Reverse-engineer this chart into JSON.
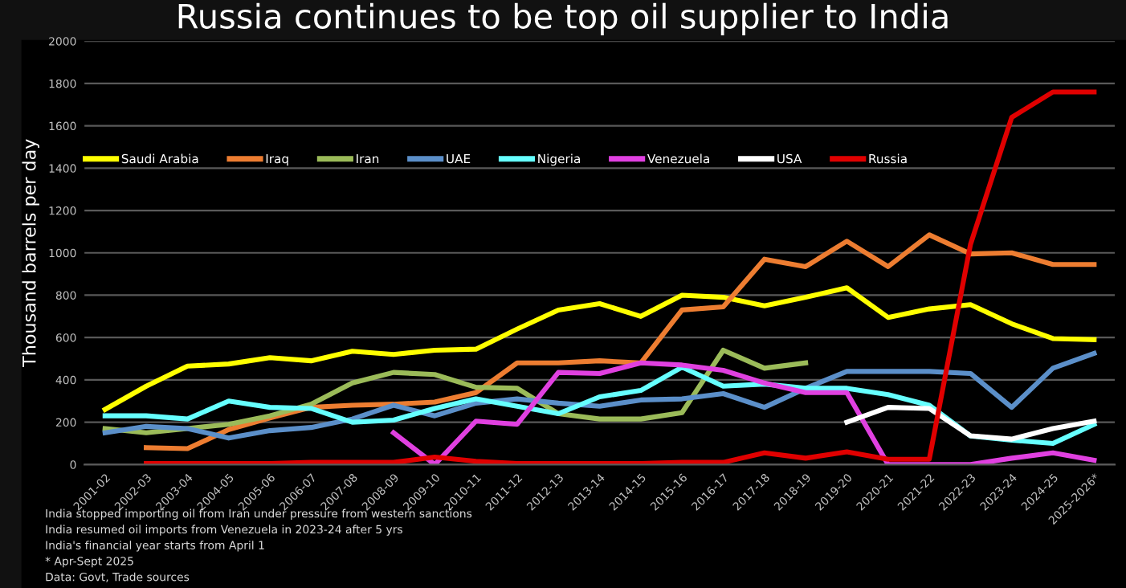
{
  "chart_data": {
    "type": "line",
    "title": "Russia continues to be top oil supplier to India",
    "ylabel": "Thousand barrels per day",
    "categories": [
      "2001-02",
      "2002-03",
      "2003-04",
      "2004-05",
      "2005-06",
      "2006-07",
      "2007-08",
      "2008-09",
      "2009-10",
      "2010-11",
      "2011-12",
      "2012-13",
      "2013-14",
      "2014-15",
      "2015-16",
      "2016-17",
      "2017-18",
      "2018-19",
      "2019-20",
      "2020-21",
      "2021-22",
      "2022-23",
      "2023-24",
      "2024-25",
      "2025-2026*"
    ],
    "series": [
      {
        "name": "Saudi Arabia",
        "color": "#ffff00",
        "values": [
          260,
          370,
          465,
          475,
          505,
          490,
          535,
          520,
          540,
          545,
          640,
          730,
          760,
          700,
          800,
          790,
          750,
          790,
          835,
          695,
          735,
          755,
          665,
          595,
          590
        ]
      },
      {
        "name": "Iraq",
        "color": "#ed7d31",
        "values": [
          null,
          80,
          75,
          165,
          220,
          270,
          280,
          285,
          295,
          340,
          480,
          480,
          490,
          480,
          730,
          745,
          970,
          935,
          1055,
          935,
          1085,
          995,
          1000,
          945,
          945
        ]
      },
      {
        "name": "Iran",
        "color": "#9bbb59",
        "values": [
          170,
          150,
          170,
          190,
          230,
          285,
          385,
          435,
          425,
          365,
          360,
          240,
          215,
          215,
          245,
          540,
          455,
          480,
          null,
          null,
          null,
          null,
          null,
          null,
          null
        ]
      },
      {
        "name": "UAE",
        "color": "#5b8fc9",
        "values": [
          150,
          180,
          170,
          125,
          160,
          175,
          215,
          280,
          230,
          290,
          310,
          290,
          275,
          305,
          310,
          335,
          270,
          360,
          440,
          440,
          440,
          430,
          270,
          455,
          525
        ]
      },
      {
        "name": "Nigeria",
        "color": "#66ffff",
        "values": [
          230,
          230,
          215,
          300,
          270,
          265,
          200,
          210,
          265,
          310,
          275,
          240,
          320,
          350,
          460,
          370,
          380,
          360,
          360,
          330,
          280,
          135,
          115,
          100,
          190
        ]
      },
      {
        "name": "Venezuela",
        "color": "#e040e0",
        "values": [
          null,
          null,
          null,
          null,
          null,
          null,
          null,
          150,
          0,
          205,
          190,
          435,
          430,
          480,
          470,
          445,
          385,
          340,
          340,
          0,
          0,
          0,
          30,
          55,
          20
        ]
      },
      {
        "name": "USA",
        "color": "#ffffff",
        "values": [
          null,
          null,
          null,
          null,
          null,
          null,
          null,
          null,
          null,
          null,
          null,
          null,
          null,
          null,
          null,
          null,
          null,
          null,
          200,
          270,
          265,
          136,
          120,
          170,
          205
        ]
      },
      {
        "name": "Russia",
        "color": "#e00000",
        "values": [
          null,
          5,
          5,
          5,
          5,
          10,
          10,
          10,
          35,
          15,
          5,
          5,
          5,
          5,
          10,
          10,
          55,
          30,
          60,
          25,
          25,
          1040,
          1640,
          1760,
          1760
        ]
      }
    ],
    "ylim": [
      0,
      2000
    ],
    "yticks": [
      0,
      200,
      400,
      600,
      800,
      1000,
      1200,
      1400,
      1600,
      1800,
      2000
    ],
    "grid": "y",
    "legend": "top",
    "marker": "none",
    "line_style": "solid",
    "annotations": [
      "India stopped importing oil from Iran under pressure from western sanctions",
      "India resumed oil imports from Venezuela in 2023-24 after 5 yrs",
      "India's financial year starts from April 1",
      "* Apr-Sept 2025",
      "Data: Govt, Trade sources"
    ]
  }
}
